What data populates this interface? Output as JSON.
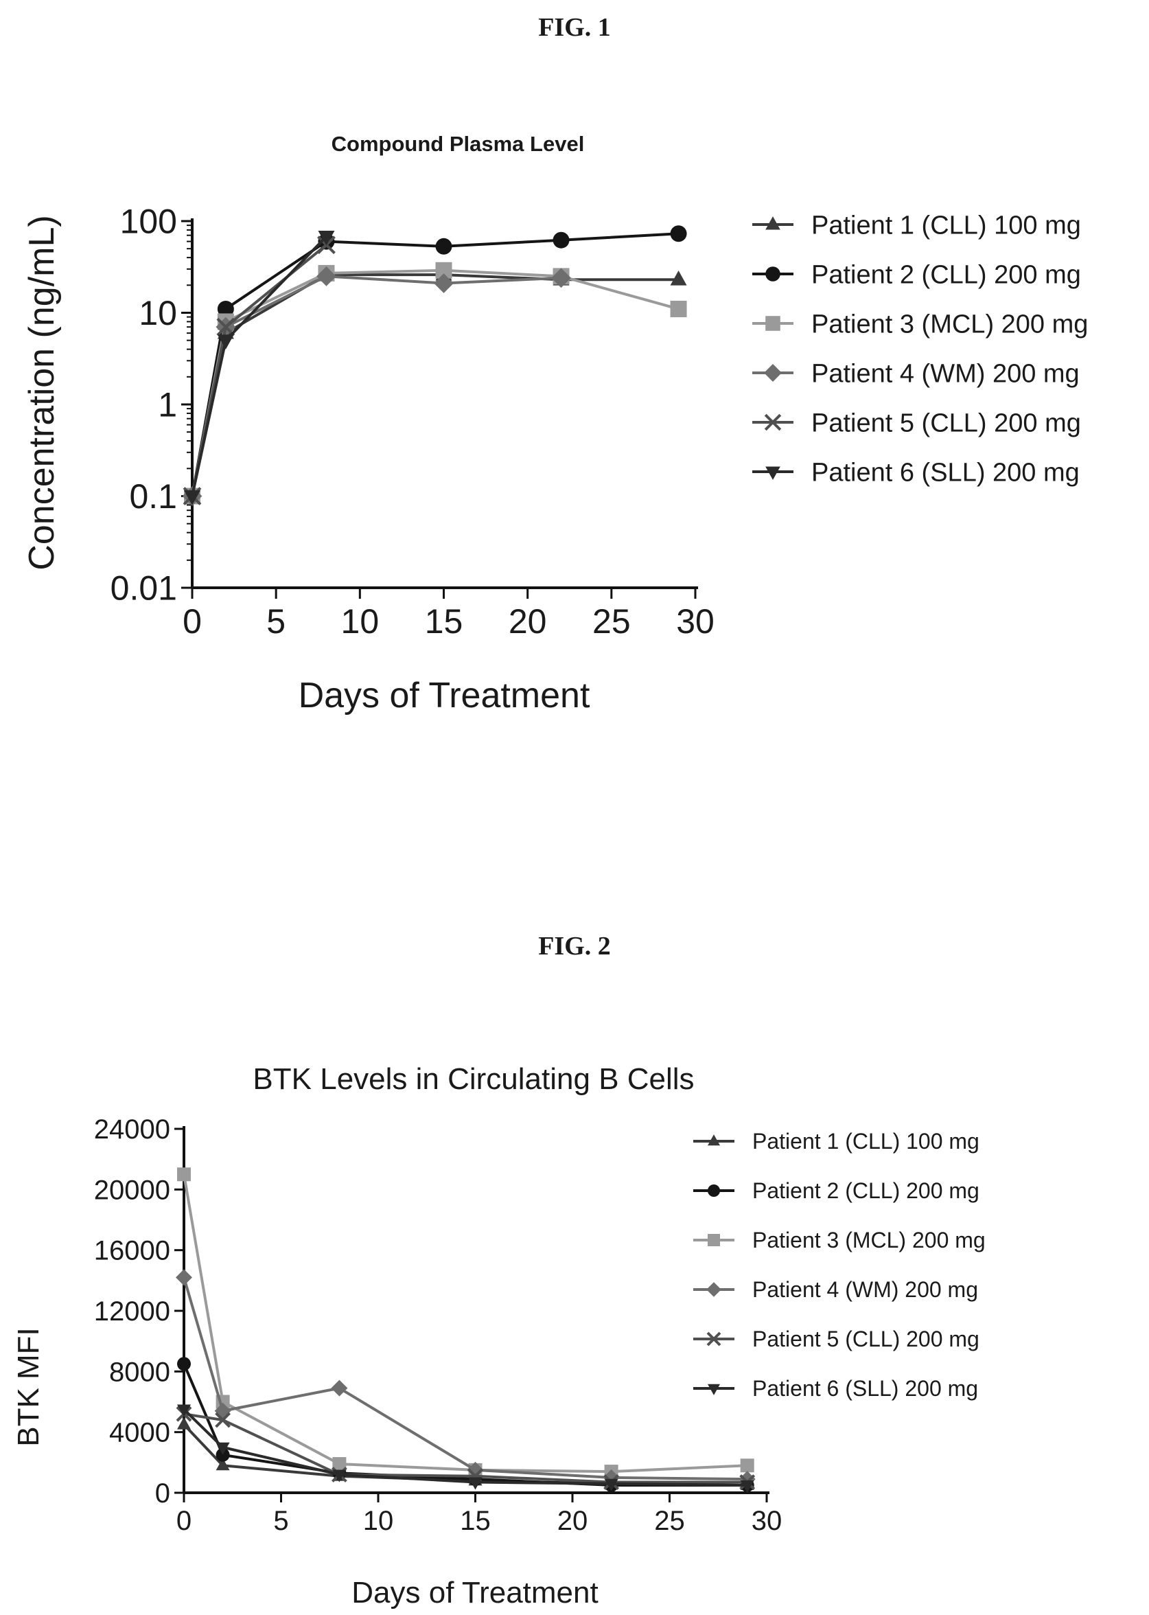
{
  "figures": {
    "fig1_label": "FIG. 1",
    "fig2_label": "FIG. 2"
  },
  "chart_data": [
    {
      "type": "line",
      "title": "Compound Plasma Level",
      "xlabel": "Days of Treatment",
      "ylabel": "Concentration (ng/mL)",
      "yscale": "log",
      "xlim": [
        0,
        30
      ],
      "ylim": [
        0.01,
        100
      ],
      "xticks": [
        "0",
        "5",
        "10",
        "15",
        "20",
        "25",
        "30"
      ],
      "yticks": [
        "0.01",
        "0.1",
        "1",
        "10",
        "100"
      ],
      "grid": false,
      "legend_position": "right",
      "x": [
        0,
        2,
        8,
        15,
        22,
        29
      ],
      "series": [
        {
          "name": "Patient 1 (CLL) 100 mg",
          "marker": "triangle-up",
          "color": "#3a3a3a",
          "values": [
            0.1,
            6,
            26,
            26,
            23,
            23
          ]
        },
        {
          "name": "Patient 2 (CLL) 200 mg",
          "marker": "circle",
          "color": "#151515",
          "values": [
            0.1,
            11,
            60,
            53,
            62,
            73
          ]
        },
        {
          "name": "Patient 3 (MCL) 200 mg",
          "marker": "square",
          "color": "#9a9a9a",
          "values": [
            0.1,
            8,
            27,
            29,
            25,
            11
          ]
        },
        {
          "name": "Patient 4 (WM) 200 mg",
          "marker": "diamond",
          "color": "#6e6e6e",
          "values": [
            0.1,
            7,
            25,
            21,
            24,
            null
          ]
        },
        {
          "name": "Patient 5 (CLL) 200 mg",
          "marker": "x",
          "color": "#505050",
          "values": [
            0.1,
            7,
            55,
            null,
            null,
            null
          ]
        },
        {
          "name": "Patient 6 (SLL) 200 mg",
          "marker": "triangle-down",
          "color": "#2a2a2a",
          "values": [
            0.1,
            5,
            68,
            null,
            null,
            null
          ]
        }
      ]
    },
    {
      "type": "line",
      "title": "BTK Levels in Circulating B Cells",
      "xlabel": "Days of Treatment",
      "ylabel": "BTK MFI",
      "xlim": [
        0,
        30
      ],
      "ylim": [
        0,
        24000
      ],
      "xticks": [
        "0",
        "5",
        "10",
        "15",
        "20",
        "25",
        "30"
      ],
      "yticks": [
        "0",
        "4000",
        "8000",
        "12000",
        "16000",
        "20000",
        "24000"
      ],
      "grid": false,
      "legend_position": "right",
      "x": [
        0,
        2,
        8,
        15,
        22,
        29
      ],
      "series": [
        {
          "name": "Patient 1 (CLL) 100 mg",
          "marker": "triangle-up",
          "color": "#3a3a3a",
          "values": [
            4500,
            1800,
            1100,
            800,
            600,
            500
          ]
        },
        {
          "name": "Patient 2 (CLL) 200 mg",
          "marker": "circle",
          "color": "#151515",
          "values": [
            8500,
            2500,
            1300,
            900,
            500,
            500
          ]
        },
        {
          "name": "Patient 3 (MCL) 200 mg",
          "marker": "square",
          "color": "#9a9a9a",
          "values": [
            21000,
            6000,
            1900,
            1500,
            1400,
            1800
          ]
        },
        {
          "name": "Patient 4 (WM) 200 mg",
          "marker": "diamond",
          "color": "#6e6e6e",
          "values": [
            14200,
            5400,
            6900,
            1500,
            1000,
            900
          ]
        },
        {
          "name": "Patient 5 (CLL) 200 mg",
          "marker": "x",
          "color": "#505050",
          "values": [
            5200,
            4800,
            1200,
            1100,
            700,
            700
          ]
        },
        {
          "name": "Patient 6 (SLL) 200 mg",
          "marker": "triangle-down",
          "color": "#2a2a2a",
          "values": [
            5500,
            3000,
            1200,
            700,
            600,
            500
          ]
        }
      ]
    }
  ]
}
